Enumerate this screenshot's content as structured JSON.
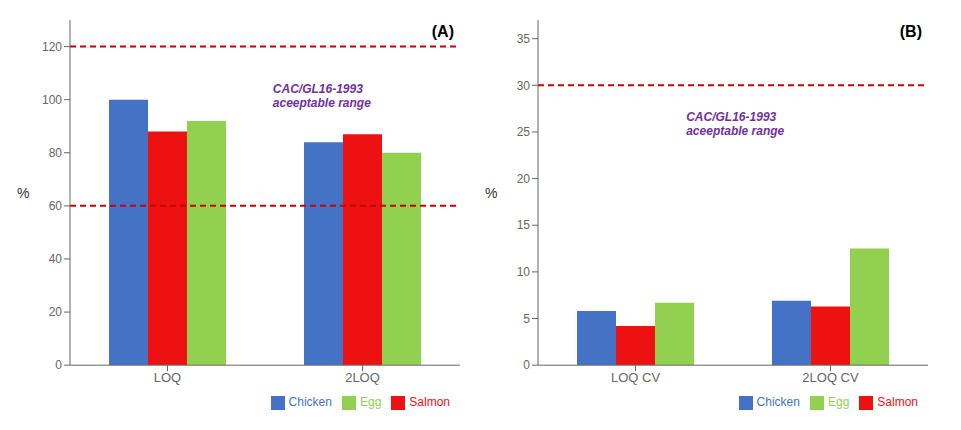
{
  "chart_data": [
    {
      "type": "bar",
      "title": "(A)",
      "categories": [
        "LOQ",
        "2LOQ"
      ],
      "series": [
        {
          "name": "Chicken",
          "color": "#4472C4",
          "values": [
            100,
            84
          ]
        },
        {
          "name": "Salmon",
          "color": "#EE1111",
          "values": [
            88,
            87
          ]
        },
        {
          "name": "Egg",
          "color": "#92D050",
          "values": [
            92,
            80
          ]
        }
      ],
      "y_label": "%",
      "ylim": [
        0,
        130
      ],
      "yticks": [
        0,
        20,
        40,
        60,
        80,
        100,
        120
      ],
      "hlines": [
        {
          "value": 120,
          "color": "#CC0000",
          "line_style": "dashed"
        },
        {
          "value": 60,
          "color": "#CC0000",
          "line_style": "dashed"
        }
      ],
      "annotations": [
        {
          "text": "CAC/GL16-1993\naceeptable range",
          "color": "#7030A0"
        }
      ],
      "grid": false,
      "legend": "lower right"
    },
    {
      "type": "bar",
      "title": "(B)",
      "categories": [
        "LOQ CV",
        "2LOQ CV"
      ],
      "series": [
        {
          "name": "Chicken",
          "color": "#4472C4",
          "values": [
            5.8,
            6.9
          ]
        },
        {
          "name": "Salmon",
          "color": "#EE1111",
          "values": [
            4.2,
            6.3
          ]
        },
        {
          "name": "Egg",
          "color": "#92D050",
          "values": [
            6.7,
            12.5
          ]
        }
      ],
      "y_label": "%",
      "ylim": [
        0,
        37
      ],
      "yticks": [
        0,
        5,
        10,
        15,
        20,
        25,
        30,
        35
      ],
      "hlines": [
        {
          "value": 30,
          "color": "#CC0000",
          "line_style": "dashed"
        }
      ],
      "annotations": [
        {
          "text": "CAC/GL16-1993\naceeptable range",
          "color": "#7030A0"
        }
      ],
      "grid": false,
      "legend": "lower right"
    }
  ]
}
